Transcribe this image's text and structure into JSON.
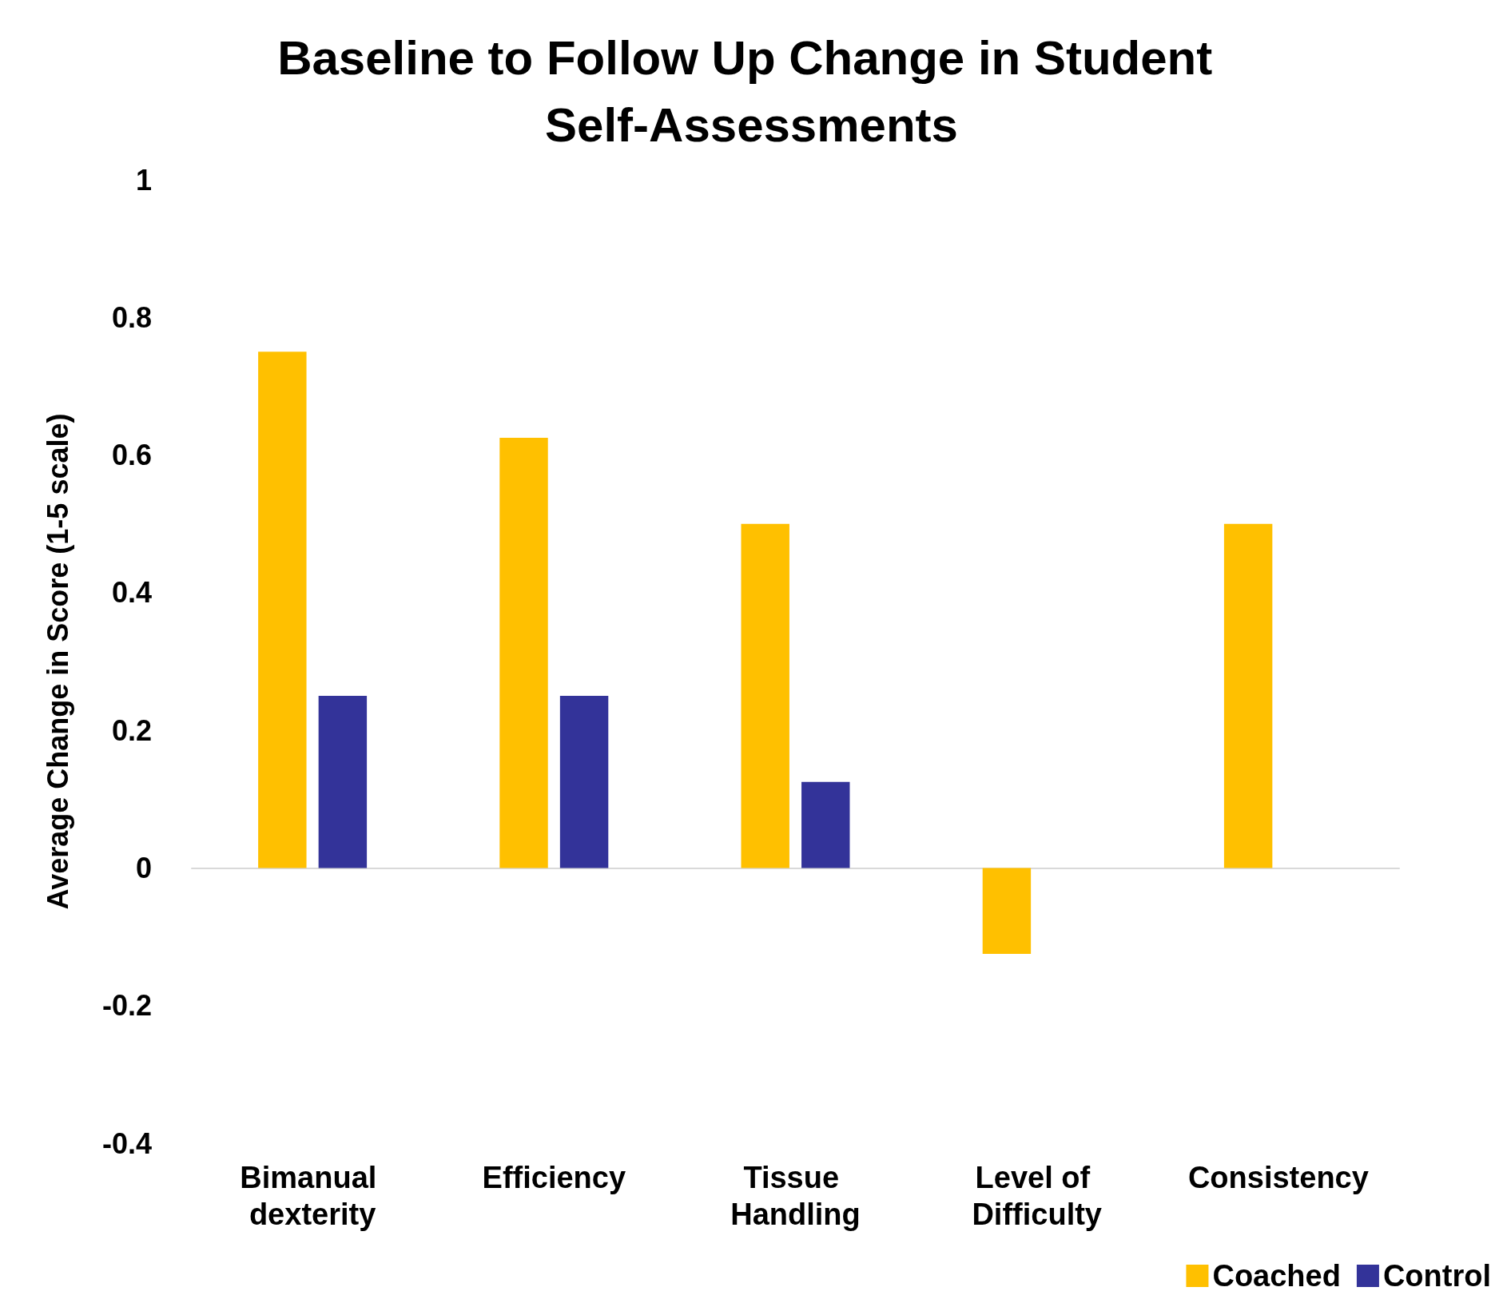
{
  "chart_data": {
    "type": "bar",
    "title": "Baseline to Follow Up Change in Student Self-Assessments",
    "ylabel": "Average Change in Score (1-5 scale)",
    "categories": [
      "Bimanual dexterity",
      "Efficiency",
      "Tissue Handling",
      "Level of Difficulty",
      "Consistency"
    ],
    "series": [
      {
        "name": "Coached",
        "color": "#ffc000",
        "values": [
          0.75,
          0.625,
          0.5,
          -0.125,
          0.5
        ]
      },
      {
        "name": "Control",
        "color": "#333399",
        "values": [
          0.25,
          0.25,
          0.125,
          0,
          0
        ]
      }
    ],
    "ylim": [
      -0.4,
      1
    ],
    "yticks": [
      -0.4,
      -0.2,
      0,
      0.2,
      0.4,
      0.6,
      0.8,
      1
    ],
    "legend": "bottom right"
  }
}
